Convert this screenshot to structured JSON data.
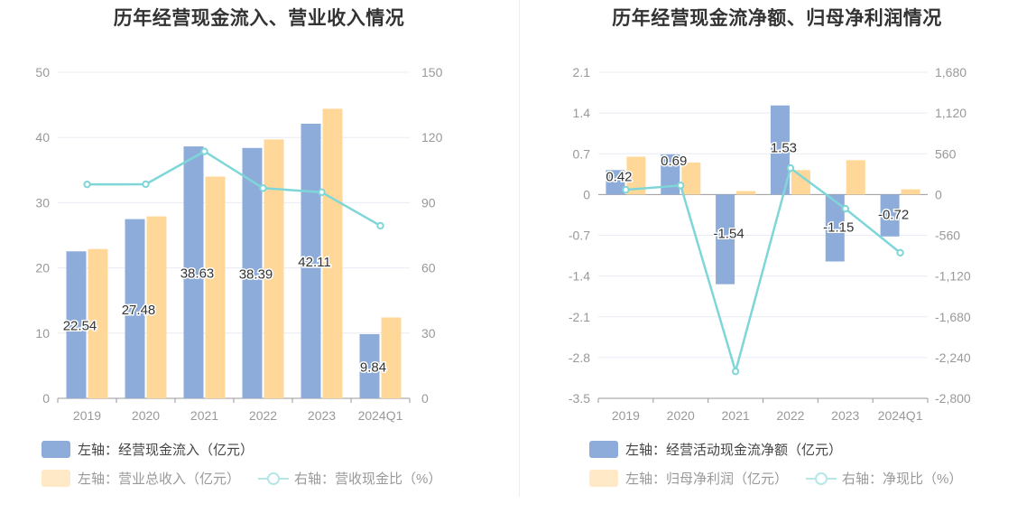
{
  "colors": {
    "bar_primary": "#8eacda",
    "bar_secondary": "#ffd899",
    "line": "#7fd6d8",
    "axis_text": "#999999",
    "grid": "#e8ecf4"
  },
  "chart_data": [
    {
      "id": "left",
      "type": "bar",
      "title": "历年经营现金流入、营业收入情况",
      "categories": [
        "2019",
        "2020",
        "2021",
        "2022",
        "2023",
        "2024Q1"
      ],
      "left_axis": {
        "ylim": [
          0,
          50
        ],
        "ticks": [
          "0",
          "10",
          "20",
          "30",
          "40",
          "50"
        ]
      },
      "right_axis": {
        "ylim": [
          0,
          150
        ],
        "ticks": [
          "0",
          "30",
          "60",
          "90",
          "120",
          "150"
        ]
      },
      "series": [
        {
          "name": "左轴：经营现金流入（亿元）",
          "kind": "bar",
          "axis": "left",
          "values": [
            22.54,
            27.48,
            38.63,
            38.39,
            42.11,
            9.84
          ],
          "labels": [
            "22.54",
            "27.48",
            "38.63",
            "38.39",
            "42.11",
            "9.84"
          ]
        },
        {
          "name": "左轴：营业总收入（亿元）",
          "kind": "bar",
          "axis": "left",
          "values": [
            22.9,
            27.9,
            34.0,
            39.7,
            44.4,
            12.4
          ]
        },
        {
          "name": "右轴：营收现金比（%）",
          "kind": "line",
          "axis": "right",
          "values": [
            98.4,
            98.5,
            113.6,
            96.7,
            94.8,
            79.4
          ]
        }
      ],
      "grid": true,
      "legend": "bottom-left"
    },
    {
      "id": "right",
      "type": "bar",
      "title": "历年经营现金流净额、归母净利润情况",
      "categories": [
        "2019",
        "2020",
        "2021",
        "2022",
        "2023",
        "2024Q1"
      ],
      "left_axis": {
        "ylim": [
          -3.5,
          2.1
        ],
        "ticks": [
          "-3.5",
          "-2.8",
          "-2.1",
          "-1.4",
          "-0.7",
          "0",
          "0.7",
          "1.4",
          "2.1"
        ]
      },
      "right_axis": {
        "ylim": [
          -2800,
          1680
        ],
        "ticks": [
          "-2,800",
          "-2,240",
          "-1,680",
          "-1,120",
          "-560",
          "0",
          "560",
          "1,120",
          "1,680"
        ]
      },
      "series": [
        {
          "name": "左轴：经营活动现金流净额（亿元）",
          "kind": "bar",
          "axis": "left",
          "values": [
            0.42,
            0.69,
            -1.54,
            1.53,
            -1.15,
            -0.72
          ],
          "labels": [
            "0.42",
            "0.69",
            "-1.54",
            "1.53",
            "-1.15",
            "-0.72"
          ]
        },
        {
          "name": "左轴：归母净利润（亿元）",
          "kind": "bar",
          "axis": "left",
          "values": [
            0.65,
            0.55,
            0.06,
            0.42,
            0.59,
            0.09
          ]
        },
        {
          "name": "右轴：净现比（%）",
          "kind": "line",
          "axis": "right",
          "values": [
            65,
            125,
            -2430,
            363,
            -195,
            -800
          ]
        }
      ],
      "grid": true,
      "legend": "bottom-left"
    }
  ]
}
